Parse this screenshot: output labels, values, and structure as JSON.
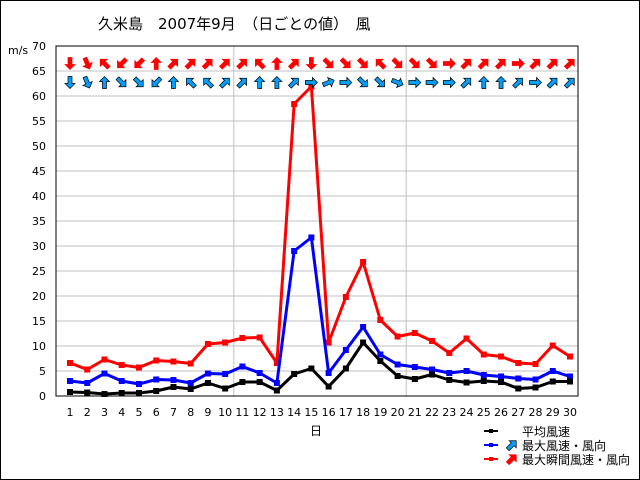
{
  "title": "久米島　2007年9月　（日ごとの値）　風",
  "unit_label": "m/s",
  "legend": [
    {
      "label": "平均風速",
      "color": "#000000"
    },
    {
      "label": "最大風速・風向",
      "color": "#0000ff"
    },
    {
      "label": "最大瞬間風速・風向",
      "color": "#ff0000"
    }
  ],
  "colors": {
    "avg": "#000000",
    "max": "#0000ff",
    "gust": "#ff0000",
    "max_arrow": "#00a0ff",
    "gust_arrow": "#ff0000",
    "grid": "#c0c0c0",
    "axis": "#000000"
  },
  "chart_data": {
    "type": "line",
    "title": "久米島　2007年9月　（日ごとの値）　風",
    "xlabel": "日",
    "ylabel": "m/s",
    "x": [
      1,
      2,
      3,
      4,
      5,
      6,
      7,
      8,
      9,
      10,
      11,
      12,
      13,
      14,
      15,
      16,
      17,
      18,
      19,
      20,
      21,
      22,
      23,
      24,
      25,
      26,
      27,
      28,
      29,
      30
    ],
    "ylim": [
      0,
      70
    ],
    "yticks": [
      0,
      5,
      10,
      15,
      20,
      25,
      30,
      35,
      40,
      45,
      50,
      55,
      60,
      65,
      70
    ],
    "grid": true,
    "legend_position": "bottom-right",
    "series": [
      {
        "name": "平均風速",
        "key": "avg",
        "values": [
          0.8,
          0.7,
          0.4,
          0.6,
          0.6,
          1.0,
          1.8,
          1.4,
          2.6,
          1.5,
          2.8,
          2.8,
          1.1,
          4.4,
          5.5,
          1.9,
          5.5,
          10.7,
          7.0,
          4.0,
          3.4,
          4.3,
          3.2,
          2.7,
          3.0,
          2.8,
          1.5,
          1.7,
          2.9,
          2.9
        ]
      },
      {
        "name": "最大風速・風向",
        "key": "max",
        "values": [
          3.0,
          2.6,
          4.5,
          3.0,
          2.4,
          3.3,
          3.2,
          2.6,
          4.5,
          4.4,
          5.9,
          4.6,
          2.6,
          29.0,
          31.7,
          4.6,
          9.2,
          13.8,
          8.3,
          6.3,
          5.8,
          5.3,
          4.6,
          5.0,
          4.2,
          3.9,
          3.5,
          3.3,
          5.0,
          3.9
        ],
        "directions": [
          "N",
          "NNW",
          "S",
          "NW",
          "NW",
          "NE",
          "S",
          "SE",
          "SE",
          "SW",
          "SW",
          "S",
          "S",
          "SW",
          "W",
          "WSW",
          "W",
          "NW",
          "NW",
          "WNW",
          "W",
          "W",
          "W",
          "SW",
          "S",
          "S",
          "SW",
          "W",
          "SW",
          "SW"
        ]
      },
      {
        "name": "最大瞬間風速・風向",
        "key": "gust",
        "values": [
          6.6,
          5.3,
          7.3,
          6.2,
          5.7,
          7.1,
          6.9,
          6.5,
          10.4,
          10.7,
          11.6,
          11.7,
          6.6,
          58.4,
          61.9,
          10.7,
          19.8,
          26.8,
          15.2,
          11.9,
          12.6,
          11.0,
          8.6,
          11.5,
          8.3,
          7.9,
          6.6,
          6.4,
          10.1,
          7.9
        ],
        "directions": [
          "N",
          "NNW",
          "SE",
          "NE",
          "NE",
          "S",
          "SW",
          "SW",
          "SW",
          "SW",
          "SW",
          "SE",
          "S",
          "SW",
          "N",
          "NW",
          "NW",
          "NW",
          "SE",
          "NW",
          "NW",
          "NW",
          "W",
          "SW",
          "SW",
          "SW",
          "W",
          "SW",
          "SW",
          "SW"
        ]
      }
    ]
  }
}
